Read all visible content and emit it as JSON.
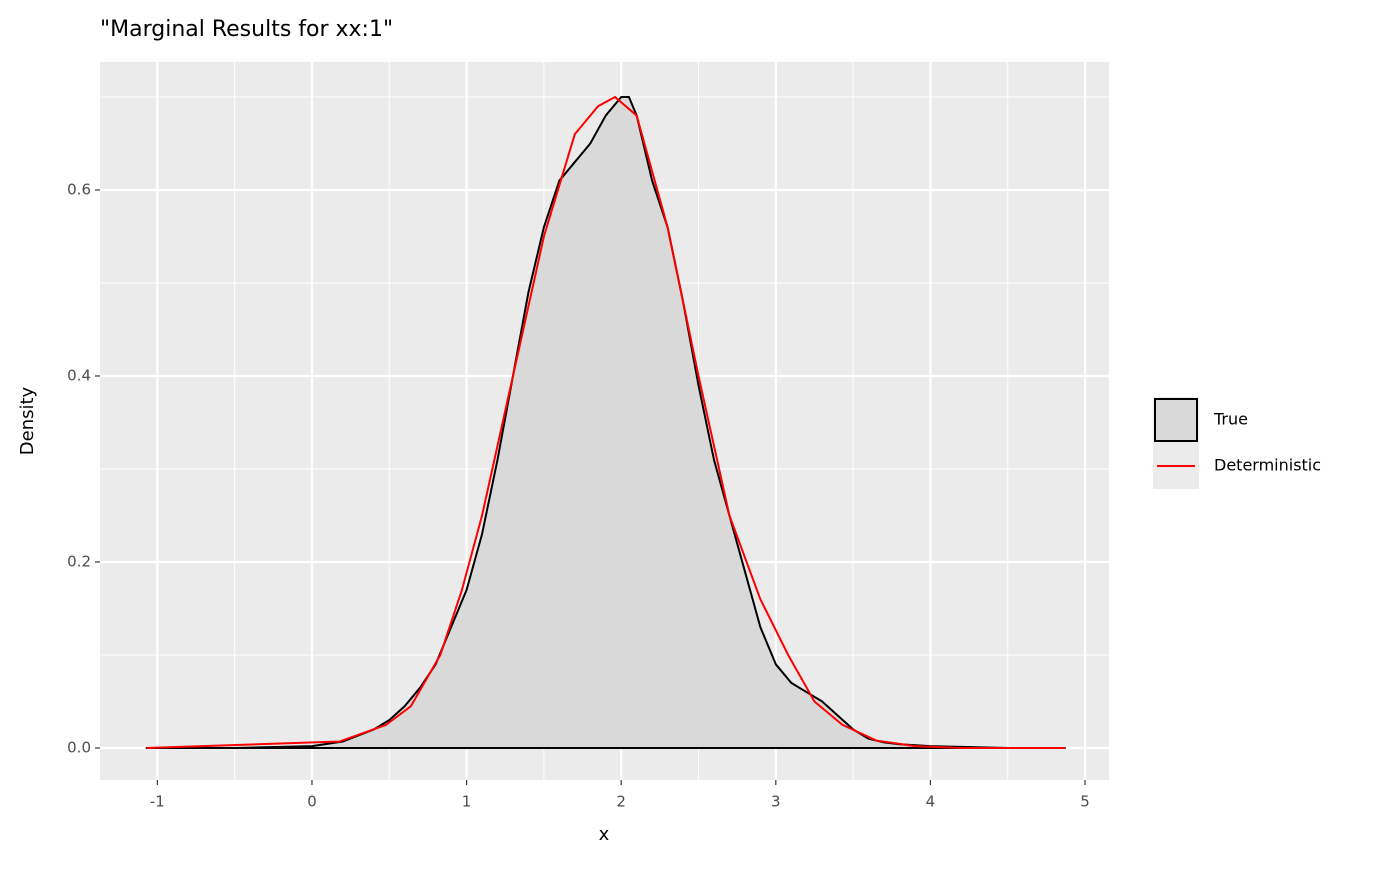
{
  "chart_data": {
    "type": "density",
    "title": "\"Marginal Results for xx:1\"",
    "x_label": "x",
    "y_label": "Density",
    "xlim": [
      -1.371,
      5.155
    ],
    "ylim": [
      -0.0344,
      0.7376
    ],
    "xticks": [
      -1,
      0,
      1,
      2,
      3,
      4,
      5
    ],
    "yticks": [
      {
        "value": 0,
        "label": "0.0"
      },
      {
        "value": 0.2,
        "label": "0.2"
      },
      {
        "value": 0.4,
        "label": "0.4"
      },
      {
        "value": 0.6,
        "label": "0.6"
      }
    ],
    "grid": true,
    "legend_position": "right",
    "series": [
      {
        "name": "True",
        "kind": "area",
        "color": "#000000",
        "fill": "#d9d9d9",
        "x": [
          -1.07,
          -0.5,
          0,
          0.2,
          0.4,
          0.5,
          0.6,
          0.7,
          0.8,
          0.9,
          1.0,
          1.1,
          1.2,
          1.3,
          1.4,
          1.5,
          1.6,
          1.7,
          1.8,
          1.9,
          2.0,
          2.05,
          2.1,
          2.2,
          2.3,
          2.4,
          2.5,
          2.6,
          2.7,
          2.8,
          2.9,
          3.0,
          3.1,
          3.2,
          3.3,
          3.4,
          3.5,
          3.6,
          3.7,
          3.8,
          4.0,
          4.5,
          4.87
        ],
        "values": [
          0,
          0,
          0.002,
          0.007,
          0.02,
          0.03,
          0.045,
          0.065,
          0.09,
          0.13,
          0.17,
          0.23,
          0.31,
          0.4,
          0.49,
          0.56,
          0.61,
          0.63,
          0.65,
          0.68,
          0.7,
          0.7,
          0.68,
          0.61,
          0.56,
          0.48,
          0.39,
          0.31,
          0.25,
          0.19,
          0.13,
          0.09,
          0.07,
          0.06,
          0.05,
          0.035,
          0.02,
          0.01,
          0.006,
          0.004,
          0.002,
          0,
          0
        ]
      },
      {
        "name": "Deterministic",
        "kind": "line",
        "color": "#ff0000",
        "x": [
          -1.07,
          0.18,
          0.48,
          0.64,
          0.83,
          0.97,
          1.1,
          1.3,
          1.5,
          1.7,
          1.85,
          1.96,
          2.1,
          2.3,
          2.5,
          2.7,
          2.9,
          3.08,
          3.25,
          3.43,
          3.65,
          3.9,
          4.2,
          4.87
        ],
        "values": [
          0,
          0.007,
          0.025,
          0.045,
          0.1,
          0.17,
          0.25,
          0.4,
          0.55,
          0.66,
          0.69,
          0.7,
          0.68,
          0.56,
          0.4,
          0.25,
          0.16,
          0.1,
          0.05,
          0.025,
          0.008,
          0.002,
          0,
          0
        ]
      }
    ]
  }
}
